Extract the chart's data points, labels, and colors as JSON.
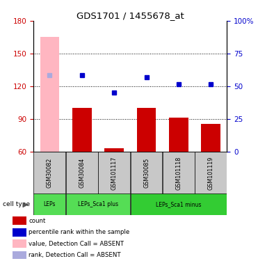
{
  "title": "GDS1701 / 1455678_at",
  "samples": [
    "GSM30082",
    "GSM30084",
    "GSM101117",
    "GSM30085",
    "GSM101118",
    "GSM101119"
  ],
  "bar_values": [
    165,
    100,
    63,
    100,
    91,
    85
  ],
  "bar_color_absent": "#FFB6C1",
  "bar_color_normal": "#CC0000",
  "bar_absent": [
    true,
    false,
    false,
    false,
    false,
    false
  ],
  "rank_values": [
    130,
    130,
    114,
    128,
    122,
    122
  ],
  "rank_absent": [
    true,
    false,
    false,
    false,
    false,
    false
  ],
  "rank_colors_normal": "#0000CC",
  "rank_colors_absent": "#AAAADD",
  "ylim_left": [
    60,
    180
  ],
  "ylim_right": [
    0,
    100
  ],
  "yticks_left": [
    60,
    90,
    120,
    150,
    180
  ],
  "yticks_right": [
    0,
    25,
    50,
    75,
    100
  ],
  "ytick_labels_right": [
    "0",
    "25",
    "50",
    "75",
    "100%"
  ],
  "dotted_lines": [
    90,
    120,
    150
  ],
  "cell_type_groups": [
    {
      "label": "LEPs",
      "start": 0,
      "end": 1,
      "color": "#55DD55"
    },
    {
      "label": "LEPs_Sca1 plus",
      "start": 1,
      "end": 3,
      "color": "#55DD55"
    },
    {
      "label": "LEPs_Sca1 minus",
      "start": 3,
      "end": 6,
      "color": "#33CC33"
    }
  ],
  "legend_items": [
    {
      "color": "#CC0000",
      "label": "count"
    },
    {
      "color": "#0000CC",
      "label": "percentile rank within the sample"
    },
    {
      "color": "#FFB6C1",
      "label": "value, Detection Call = ABSENT"
    },
    {
      "color": "#AAAADD",
      "label": "rank, Detection Call = ABSENT"
    }
  ],
  "cell_type_label": "cell type",
  "bg_color": "#FFFFFF",
  "tick_color_left": "#CC0000",
  "tick_color_right": "#0000CC"
}
